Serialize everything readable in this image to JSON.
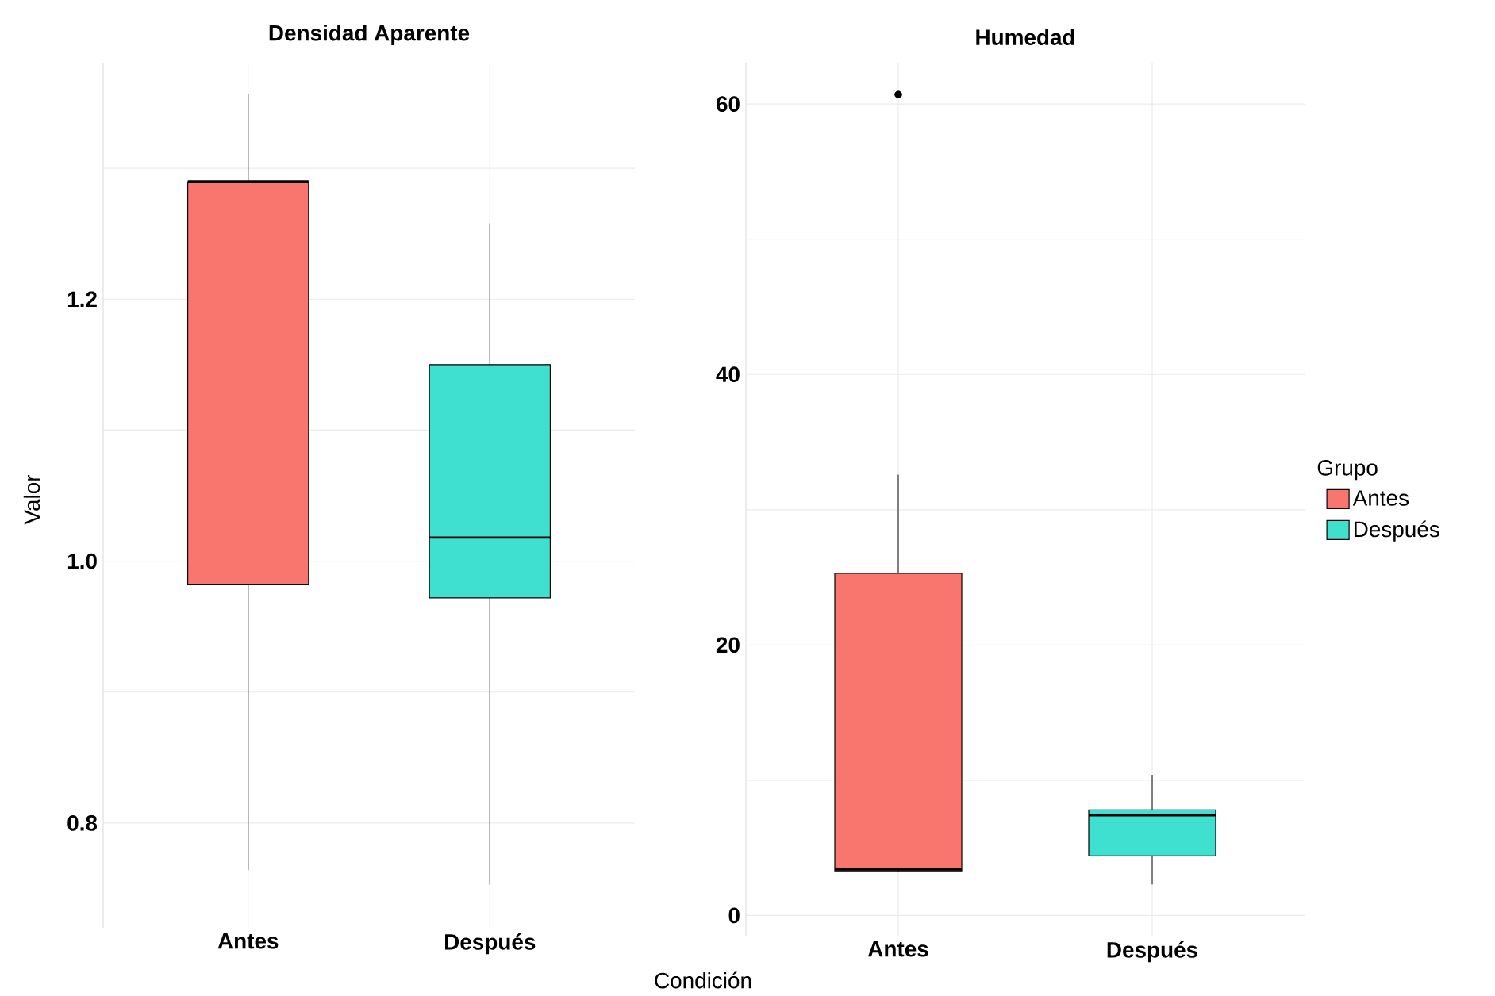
{
  "chart_data": [
    {
      "type": "box",
      "title": "Densidad Aparente",
      "xlabel": "Condición",
      "ylabel": "Valor",
      "categories": [
        "Antes",
        "Después"
      ],
      "series": [
        {
          "color": "#f8766d",
          "boxes": [
            {
              "low": 0.764,
              "q1": 0.982,
              "median": 1.29,
              "q3": 1.289,
              "high": 1.357
            },
            null
          ]
        },
        {
          "color": "#40e0d0",
          "boxes": [
            null,
            {
              "low": 0.753,
              "q1": 0.972,
              "median": 1.018,
              "q3": 1.15,
              "high": 1.258
            }
          ]
        }
      ],
      "ylim": [
        0.72,
        1.38
      ],
      "yticks": [
        0.8,
        {
          "value": 0.9,
          "label": null
        },
        {
          "value": 1.0,
          "label": "1.0"
        },
        {
          "value": 1.1,
          "label": null
        },
        1.2,
        {
          "value": 1.3,
          "label": null
        }
      ],
      "grid": true
    },
    {
      "type": "box",
      "title": "Humedad",
      "categories": [
        "Antes",
        "Después"
      ],
      "series": [
        {
          "name": "Antes",
          "color": "#f8766d",
          "boxes": [
            {
              "low": 3.2,
              "q1": 3.3,
              "median": 3.4,
              "q3": 25.3,
              "high": 32.6,
              "outliers": [
                60.7
              ]
            },
            null
          ]
        },
        {
          "name": "Después",
          "color": "#40e0d0",
          "boxes": [
            null,
            {
              "low": 2.3,
              "q1": 4.4,
              "median": 7.4,
              "q3": 7.8,
              "high": 10.4
            }
          ]
        }
      ],
      "ylim": [
        -1.5,
        63
      ],
      "yticks": [
        0,
        {
          "value": 10,
          "label": null
        },
        20,
        {
          "value": 30,
          "label": null
        },
        40,
        {
          "value": 50,
          "label": null
        },
        60
      ],
      "grid": true,
      "legend": "right",
      "legend_title": "Grupo"
    }
  ]
}
